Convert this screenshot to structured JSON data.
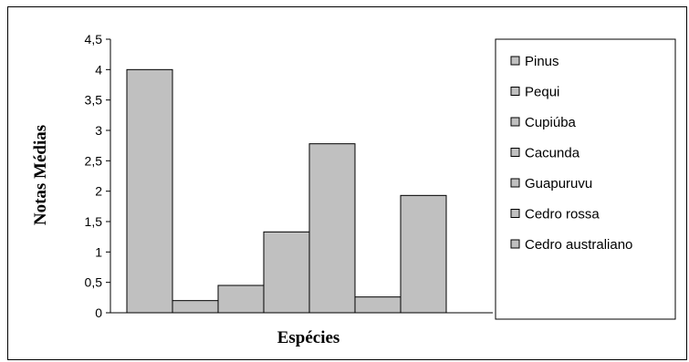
{
  "chart_data": {
    "type": "bar",
    "title": "",
    "xlabel": "Espécies",
    "ylabel": "Notas Médias",
    "ylim": [
      0,
      4.5
    ],
    "yticks": [
      "0",
      "0,5",
      "1",
      "1,5",
      "2",
      "2,5",
      "3",
      "3,5",
      "4",
      "4,5"
    ],
    "grid": false,
    "legend_position": "right",
    "bar_color": "#c0c0c0",
    "series": [
      {
        "name": "Pinus",
        "value": 4.0
      },
      {
        "name": "Pequi",
        "value": 0.2
      },
      {
        "name": "Cupiúba",
        "value": 0.45
      },
      {
        "name": "Cacunda",
        "value": 1.33
      },
      {
        "name": "Guapuruvu",
        "value": 2.78
      },
      {
        "name": "Cedro rossa",
        "value": 0.26
      },
      {
        "name": "Cedro australiano",
        "value": 1.93
      }
    ]
  }
}
